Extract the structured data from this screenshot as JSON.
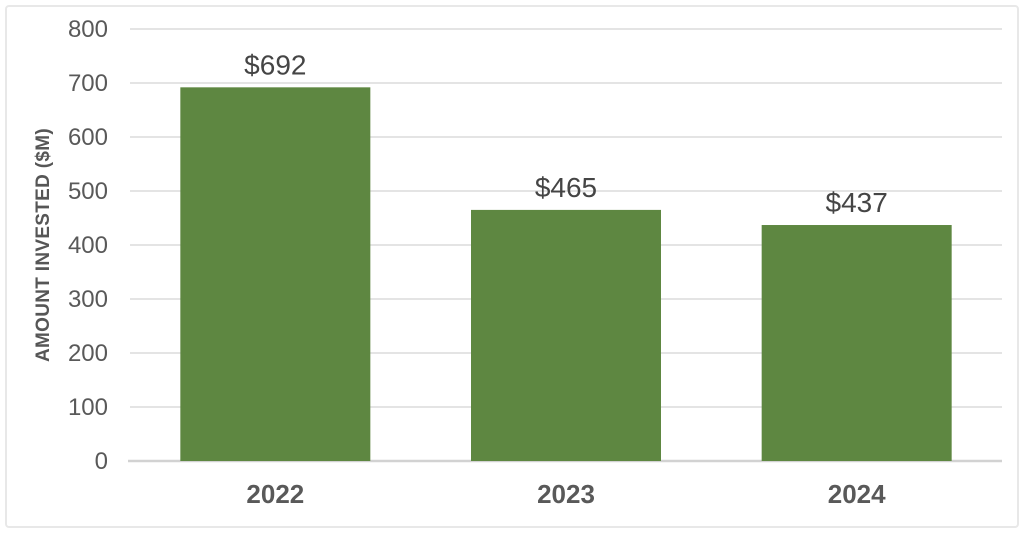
{
  "chart_data": {
    "type": "bar",
    "title": "",
    "xlabel": "",
    "ylabel": "AMOUNT INVESTED ($M)",
    "categories": [
      "2022",
      "2023",
      "2024"
    ],
    "values": [
      692,
      465,
      437
    ],
    "data_labels": [
      "$692",
      "$465",
      "$437"
    ],
    "ylim": [
      0,
      800
    ],
    "yticks": [
      0,
      100,
      200,
      300,
      400,
      500,
      600,
      700,
      800
    ],
    "grid": "horizontal gridlines on",
    "legend": "none",
    "colors": {
      "bar": "#5e8741",
      "gridline": "#dcdcdc",
      "axis_line": "#d2d2d2",
      "tick_label": "#595959",
      "category_label": "#595959",
      "data_label": "#454545",
      "axis_title": "#565656",
      "frame_border": "#e8e8e8",
      "background": "#ffffff"
    }
  }
}
